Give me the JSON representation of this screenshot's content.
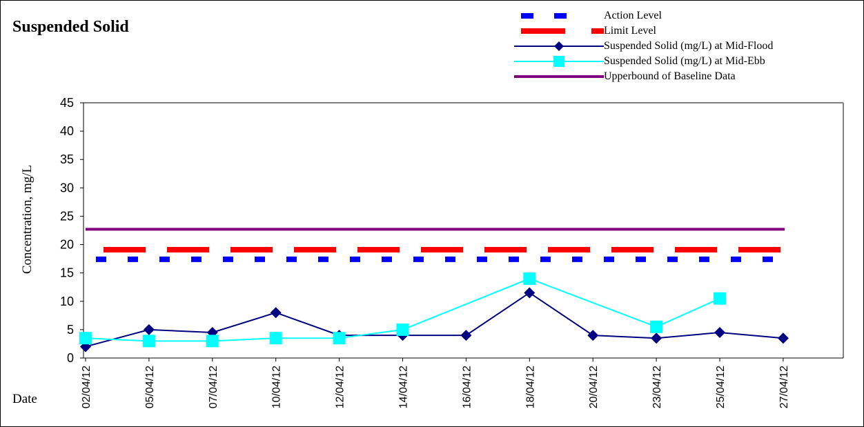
{
  "chart_data": {
    "type": "line",
    "title": "Suspended Solid",
    "ylabel": "Concentration, mg/L",
    "xlabel": "Date",
    "ylim": [
      0,
      45
    ],
    "yticks": [
      0,
      5,
      10,
      15,
      20,
      25,
      30,
      35,
      40,
      45
    ],
    "categories": [
      "02/04/12",
      "05/04/12",
      "07/04/12",
      "10/04/12",
      "12/04/12",
      "14/04/12",
      "16/04/12",
      "18/04/12",
      "20/04/12",
      "23/04/12",
      "25/04/12",
      "27/04/12"
    ],
    "grid": false,
    "legend_position": "top-right",
    "series": [
      {
        "name": "Action Level",
        "style": "dashed",
        "color": "#0000ff",
        "values": [
          17.4,
          17.4,
          17.4,
          17.4,
          17.4,
          17.4,
          17.4,
          17.4,
          17.4,
          17.4,
          17.4,
          17.4
        ]
      },
      {
        "name": "Limit Level",
        "style": "dashed",
        "color": "#ff0000",
        "values": [
          19.1,
          19.1,
          19.1,
          19.1,
          19.1,
          19.1,
          19.1,
          19.1,
          19.1,
          19.1,
          19.1,
          19.1
        ]
      },
      {
        "name": "Suspended Solid (mg/L) at Mid-Flood",
        "style": "line-diamond",
        "color": "#000080",
        "values": [
          2,
          5,
          4.5,
          8,
          4,
          4,
          4,
          11.5,
          4,
          3.5,
          4.5,
          3.5
        ]
      },
      {
        "name": "Suspended Solid (mg/L) at Mid-Ebb",
        "style": "line-square",
        "color": "#00ffff",
        "values": [
          3.5,
          3,
          3,
          3.5,
          3.5,
          5,
          null,
          14,
          null,
          5.5,
          10.5,
          null
        ]
      },
      {
        "name": "Upperbound of Baseline Data",
        "style": "solid",
        "color": "#800080",
        "values": [
          22.7,
          22.7,
          22.7,
          22.7,
          22.7,
          22.7,
          22.7,
          22.7,
          22.7,
          22.7,
          22.7,
          22.7
        ]
      }
    ]
  }
}
